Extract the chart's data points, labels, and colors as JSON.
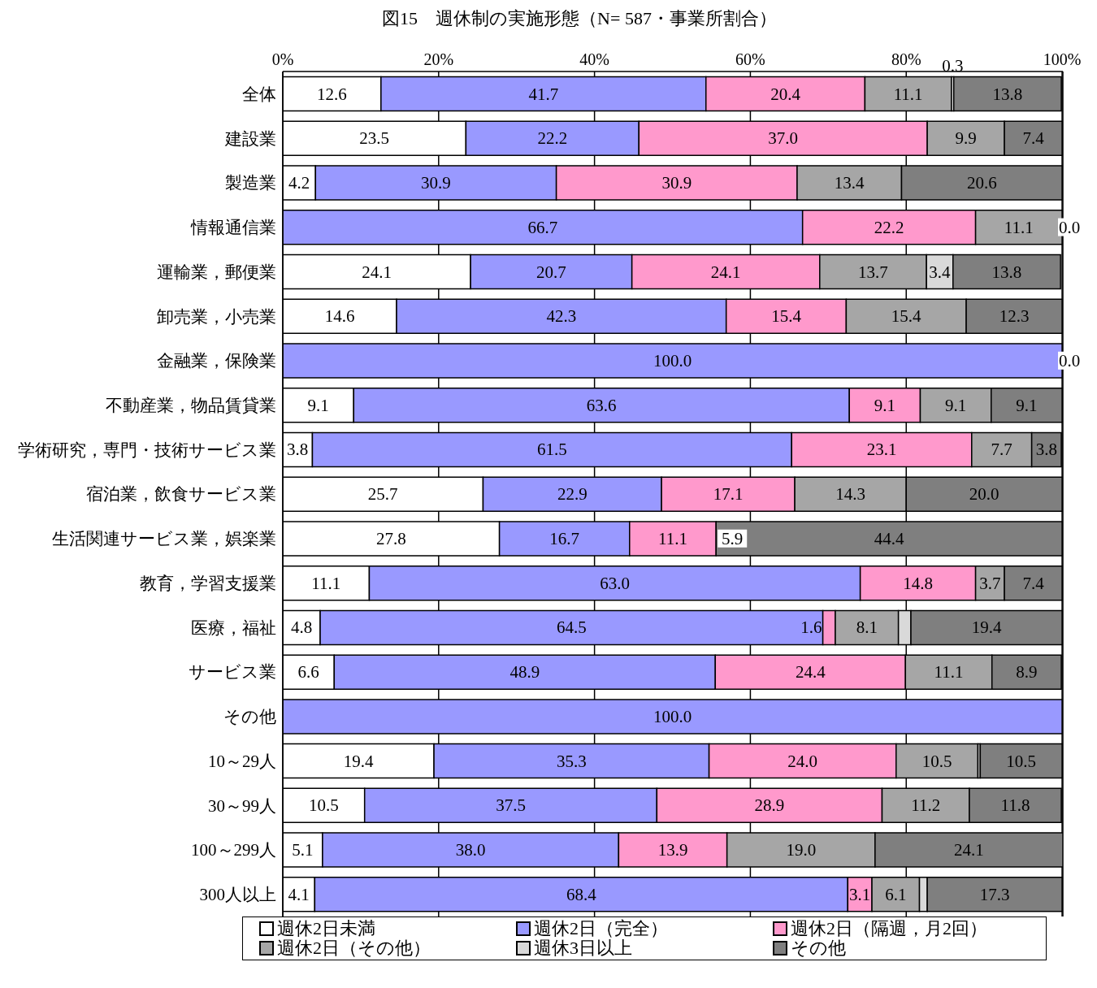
{
  "chart_data": {
    "type": "bar",
    "orientation": "horizontal",
    "stacked": true,
    "title": "図15　週休制の実施形態（N= 587・事業所割合）",
    "categories": [
      "全体",
      "建設業",
      "製造業",
      "情報通信業",
      "運輸業，郵便業",
      "卸売業，小売業",
      "金融業，保険業",
      "不動産業，物品賃貸業",
      "学術研究，専門・技術サービス業",
      "宿泊業，飲食サービス業",
      "生活関連サービス業，娯楽業",
      "教育，学習支援業",
      "医療，福祉",
      "サービス業",
      "その他",
      "10～29人",
      "30～99人",
      "100～299人",
      "300人以上"
    ],
    "series": [
      {
        "name": "週休2日未満",
        "color": "#ffffff",
        "values": [
          12.6,
          23.5,
          4.2,
          0,
          24.1,
          14.6,
          0,
          9.1,
          3.8,
          25.7,
          27.8,
          11.1,
          4.8,
          6.6,
          0,
          19.4,
          10.5,
          5.1,
          4.1
        ],
        "value_labels": [
          "12.6",
          "23.5",
          "4.2",
          null,
          "24.1",
          "14.6",
          null,
          "9.1",
          "3.8",
          "25.7",
          "27.8",
          "11.1",
          "4.8",
          "6.6",
          null,
          "19.4",
          "10.5",
          "5.1",
          "4.1"
        ]
      },
      {
        "name": "週休2日（完全）",
        "color": "#9999ff",
        "values": [
          41.7,
          22.2,
          30.9,
          66.7,
          20.7,
          42.3,
          100.0,
          63.6,
          61.5,
          22.9,
          16.7,
          63.0,
          64.5,
          48.9,
          100.0,
          35.3,
          37.5,
          38.0,
          68.4
        ],
        "value_labels": [
          "41.7",
          "22.2",
          "30.9",
          "66.7",
          "20.7",
          "42.3",
          "100.0",
          "63.6",
          "61.5",
          "22.9",
          "16.7",
          "63.0",
          "64.5",
          "48.9",
          "100.0",
          "35.3",
          "37.5",
          "38.0",
          "68.4"
        ]
      },
      {
        "name": "週休2日（隔週，月2回）",
        "color": "#ff99cc",
        "values": [
          20.4,
          37.0,
          30.9,
          22.2,
          24.1,
          15.4,
          0,
          9.1,
          23.1,
          17.1,
          11.1,
          14.8,
          1.6,
          24.4,
          0,
          24.0,
          28.9,
          13.9,
          3.1
        ],
        "value_labels": [
          "20.4",
          "37.0",
          "30.9",
          "22.2",
          "24.1",
          "15.4",
          null,
          "9.1",
          "23.1",
          "17.1",
          "11.1",
          "14.8",
          "1.6",
          "24.4",
          null,
          "24.0",
          "28.9",
          "13.9",
          "3.1"
        ]
      },
      {
        "name": "週休2日（その他）",
        "color": "#a6a6a6",
        "values": [
          11.1,
          9.9,
          13.4,
          11.1,
          13.7,
          15.4,
          0,
          9.1,
          7.7,
          14.3,
          0,
          3.7,
          8.1,
          11.1,
          0,
          10.5,
          11.2,
          19.0,
          6.1
        ],
        "value_labels": [
          "11.1",
          "9.9",
          "13.4",
          "11.1",
          "13.7",
          "15.4",
          null,
          "9.1",
          "7.7",
          "14.3",
          null,
          "3.7",
          "8.1",
          "11.1",
          null,
          "10.5",
          "11.2",
          "19.0",
          "6.1"
        ]
      },
      {
        "name": "週休3日以上",
        "color": "#d9d9d9",
        "values": [
          0.3,
          0,
          0,
          0,
          3.4,
          0,
          0,
          0,
          0,
          0,
          null,
          0,
          1.6,
          0,
          0,
          0.3,
          0,
          0,
          1.0
        ],
        "value_labels": [
          "0.3",
          null,
          null,
          null,
          "3.4",
          null,
          null,
          null,
          null,
          null,
          null,
          null,
          null,
          null,
          null,
          null,
          null,
          null,
          null
        ]
      },
      {
        "name": "その他",
        "color": "#7f7f7f",
        "values": [
          13.8,
          7.4,
          20.6,
          0.0,
          13.8,
          12.3,
          0.0,
          9.1,
          3.8,
          20.0,
          44.4,
          7.4,
          19.4,
          8.9,
          0,
          10.5,
          11.8,
          24.1,
          17.3
        ],
        "value_labels": [
          "13.8",
          "7.4",
          "20.6",
          "0.0",
          "13.8",
          "12.3",
          "0.0",
          "9.1",
          "3.8",
          "20.0",
          "44.4",
          "7.4",
          "19.4",
          "8.9",
          null,
          "10.5",
          "11.8",
          "24.1",
          "17.3"
        ]
      }
    ],
    "annotations": [
      {
        "text": "5.9",
        "x": 55.6,
        "y": "生活関連サービス業，娯楽業"
      }
    ],
    "xlim": [
      0,
      100.1
    ],
    "xticks": [
      {
        "value": 0,
        "label": "0%"
      },
      {
        "value": 20,
        "label": "20%"
      },
      {
        "value": 40,
        "label": "40%"
      },
      {
        "value": 60,
        "label": "60%"
      },
      {
        "value": 80,
        "label": "80%"
      },
      {
        "value": 100,
        "label": "100%"
      }
    ],
    "grid": "x",
    "legend": "bottom"
  }
}
